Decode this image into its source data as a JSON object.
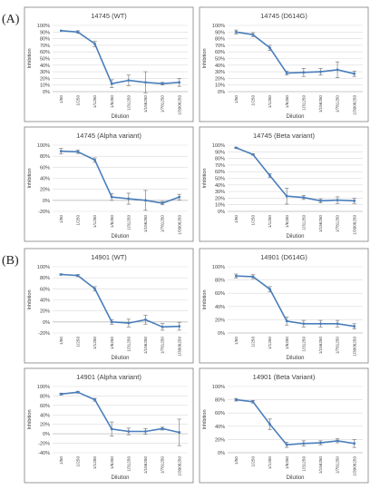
{
  "sections": [
    {
      "label": "(A)"
    },
    {
      "label": "(B)"
    }
  ],
  "chart_data": [
    {
      "type": "line",
      "title": "14745 (WT)",
      "xlabel": "Dilution",
      "ylabel": "Inhibition",
      "categories": [
        "1/50",
        "1/250",
        "1/1250",
        "1/6250",
        "1/31250",
        "1/156250",
        "1/781250",
        "1/3906250"
      ],
      "yticks": [
        "0%",
        "10%",
        "20%",
        "30%",
        "40%",
        "50%",
        "60%",
        "70%",
        "80%",
        "90%",
        "100%"
      ],
      "ylim": [
        0,
        100
      ],
      "values": [
        92,
        90,
        72,
        12,
        17,
        14,
        12,
        14
      ],
      "errors": [
        0,
        2,
        4,
        6,
        8,
        16,
        2,
        6
      ]
    },
    {
      "type": "line",
      "title": "14745 (D614G)",
      "xlabel": "Dilution",
      "ylabel": "Inhibition",
      "categories": [
        "1/50",
        "1/250",
        "1/1250",
        "1/6250",
        "1/31250",
        "1/156250",
        "1/781250",
        "1/3906250"
      ],
      "yticks": [
        "0%",
        "10%",
        "20%",
        "30%",
        "40%",
        "50%",
        "60%",
        "70%",
        "80%",
        "90%",
        "100%"
      ],
      "ylim": [
        0,
        100
      ],
      "values": [
        90,
        86,
        66,
        28,
        29,
        30,
        33,
        27
      ],
      "errors": [
        3,
        3,
        4,
        3,
        6,
        5,
        12,
        4
      ]
    },
    {
      "type": "line",
      "title": "14745 (Alpha variant)",
      "xlabel": "Dilution",
      "ylabel": "Inhibition",
      "categories": [
        "1/50",
        "1/250",
        "1/1250",
        "1/6250",
        "1/31250",
        "1/156250",
        "1/781250",
        "1/3906250"
      ],
      "yticks": [
        "-20%",
        "0%",
        "20%",
        "40%",
        "60%",
        "80%",
        "100%"
      ],
      "ylim": [
        -20,
        100
      ],
      "values": [
        89,
        88,
        73,
        6,
        3,
        0,
        -5,
        6
      ],
      "errors": [
        5,
        3,
        4,
        6,
        10,
        18,
        3,
        5
      ]
    },
    {
      "type": "line",
      "title": "14745 (Beta variant)",
      "xlabel": "Dilution",
      "ylabel": "Inhibition",
      "categories": [
        "1/50",
        "1/250",
        "1/1250",
        "1/6250",
        "1/31250",
        "1/156250",
        "1/781250",
        "1/3906250"
      ],
      "yticks": [
        "0%",
        "10%",
        "20%",
        "30%",
        "40%",
        "50%",
        "60%",
        "70%",
        "80%",
        "90%",
        "100%"
      ],
      "ylim": [
        0,
        100
      ],
      "values": [
        96,
        86,
        54,
        23,
        21,
        16,
        17,
        16
      ],
      "errors": [
        1,
        1,
        3,
        12,
        3,
        3,
        5,
        4
      ]
    },
    {
      "type": "line",
      "title": "14901 (WT)",
      "xlabel": "Dilution",
      "ylabel": "Inhibition",
      "categories": [
        "1/50",
        "1/250",
        "1/1250",
        "1/6250",
        "1/31250",
        "1/156250",
        "1/781250",
        "1/3906250"
      ],
      "yticks": [
        "-20%",
        "0%",
        "20%",
        "40%",
        "60%",
        "80%",
        "100%"
      ],
      "ylim": [
        -20,
        100
      ],
      "values": [
        86,
        84,
        60,
        0,
        -2,
        4,
        -9,
        -8
      ],
      "errors": [
        1,
        2,
        4,
        4,
        7,
        8,
        6,
        7
      ]
    },
    {
      "type": "line",
      "title": "14901 (D614G)",
      "xlabel": "Dilution",
      "ylabel": "Inhibition",
      "categories": [
        "1/50",
        "1/250",
        "1/1250",
        "1/6250",
        "1/31250",
        "1/156250",
        "1/781250",
        "1/3906250"
      ],
      "yticks": [
        "0%",
        "20%",
        "40%",
        "60%",
        "80%",
        "100%"
      ],
      "ylim": [
        0,
        100
      ],
      "values": [
        86,
        85,
        66,
        18,
        14,
        14,
        14,
        10
      ],
      "errors": [
        3,
        3,
        4,
        6,
        5,
        5,
        5,
        4
      ]
    },
    {
      "type": "line",
      "title": "14901 (Alpha variant)",
      "xlabel": "Dilution",
      "ylabel": "Inhibition",
      "categories": [
        "1/50",
        "1/250",
        "1/1250",
        "1/6250",
        "1/31250",
        "1/156250",
        "1/781250",
        "1/3906250"
      ],
      "yticks": [
        "-40%",
        "-20%",
        "0%",
        "20%",
        "40%",
        "60%",
        "80%",
        "100%"
      ],
      "ylim": [
        -40,
        100
      ],
      "values": [
        84,
        88,
        72,
        10,
        5,
        5,
        11,
        3
      ],
      "errors": [
        2,
        2,
        3,
        15,
        7,
        6,
        3,
        28
      ]
    },
    {
      "type": "line",
      "title": "14901 (Beta Variant)",
      "xlabel": "Dilution",
      "ylabel": "Inhibition",
      "categories": [
        "1/50",
        "1/250",
        "1/1250",
        "1/6250",
        "1/31250",
        "1/156250",
        "1/781250",
        "1/3906250"
      ],
      "yticks": [
        "0%",
        "20%",
        "40%",
        "60%",
        "80%",
        "100%"
      ],
      "ylim": [
        0,
        100
      ],
      "values": [
        80,
        77,
        43,
        12,
        14,
        15,
        18,
        14
      ],
      "errors": [
        2,
        2,
        8,
        4,
        4,
        3,
        3,
        6
      ]
    }
  ],
  "style": {
    "line_color": "#4a7ebb",
    "grid_color": "#d9d9d9",
    "frame_color": "#7f7f7f",
    "text_color": "#404040"
  }
}
